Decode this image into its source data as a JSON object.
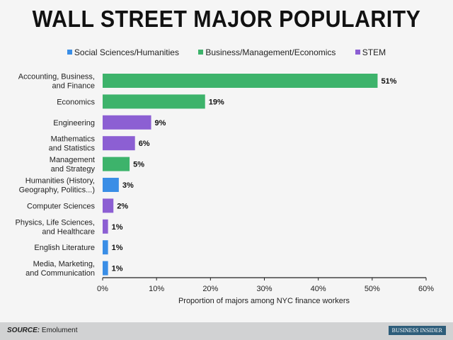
{
  "chart_data": {
    "type": "bar",
    "orientation": "horizontal",
    "title": "WALL STREET MAJOR POPULARITY",
    "xlabel": "Proportion of majors among NYC finance workers",
    "ylabel": "",
    "xlim": [
      0,
      60
    ],
    "xticks": [
      "0%",
      "10%",
      "20%",
      "30%",
      "40%",
      "50%",
      "60%"
    ],
    "legend": [
      {
        "name": "Social Sciences/Humanities",
        "color": "#3a8ee6"
      },
      {
        "name": "Business/Management/Economics",
        "color": "#3db36b"
      },
      {
        "name": "STEM",
        "color": "#8c5fd3"
      }
    ],
    "categories": [
      [
        "Accounting, Business,",
        "and Finance"
      ],
      [
        "Economics"
      ],
      [
        "Engineering"
      ],
      [
        "Mathematics",
        "and Statistics"
      ],
      [
        "Management",
        "and Strategy"
      ],
      [
        "Humanities (History,",
        "Geography, Politics...)"
      ],
      [
        "Computer Sciences"
      ],
      [
        "Physics, Life Sciences,",
        "and Healthcare"
      ],
      [
        "English Literature"
      ],
      [
        "Media, Marketing,",
        "and Communication"
      ]
    ],
    "values": [
      51,
      19,
      9,
      6,
      5,
      3,
      2,
      1,
      1,
      1
    ],
    "labels": [
      "51%",
      "19%",
      "9%",
      "6%",
      "5%",
      "3%",
      "2%",
      "1%",
      "1%",
      "1%"
    ],
    "groups": [
      1,
      1,
      2,
      2,
      1,
      0,
      2,
      2,
      0,
      0
    ]
  },
  "footer": {
    "source_label": "SOURCE:",
    "source": "Emolument",
    "logo": "BUSINESS INSIDER"
  }
}
